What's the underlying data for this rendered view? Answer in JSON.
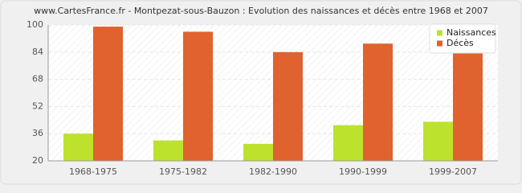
{
  "chart_data": {
    "type": "bar",
    "title": "www.CartesFrance.fr - Montpezat-sous-Bauzon : Evolution des naissances et décès entre 1968 et 2007",
    "categories": [
      "1968-1975",
      "1975-1982",
      "1982-1990",
      "1990-1999",
      "1999-2007"
    ],
    "series": [
      {
        "name": "Naissances",
        "color": "#bde22d",
        "values": [
          36,
          32,
          30,
          41,
          43
        ]
      },
      {
        "name": "Décès",
        "color": "#e0622e",
        "values": [
          99,
          96,
          84,
          89,
          85
        ]
      }
    ],
    "ylim": [
      20,
      100
    ],
    "yticks": [
      20,
      36,
      52,
      68,
      84,
      100
    ],
    "grid": true,
    "legend": "top-right"
  }
}
